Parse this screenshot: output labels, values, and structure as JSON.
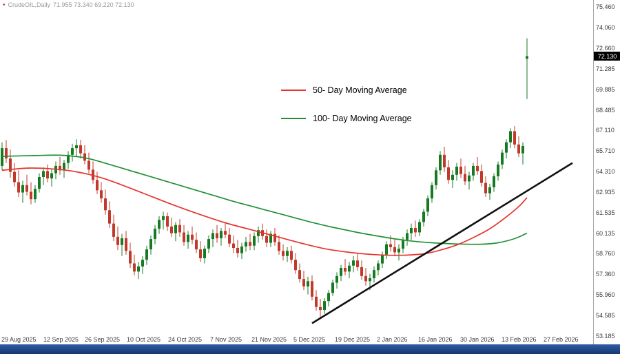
{
  "window": {
    "symbol_label": "CrudeOIL,Daily",
    "ohlc_text": "71.955 73.340 69.220 72.130"
  },
  "chart_data": {
    "type": "candlestick",
    "symbol": "CrudeOIL",
    "timeframe": "Daily",
    "current_bar": {
      "open": 71.955,
      "high": 73.34,
      "low": 69.22,
      "close": 72.13
    },
    "current_price_label": "72.130",
    "y_range": [
      53.185,
      75.46
    ],
    "y_tick_labels": [
      "75.460",
      "74.060",
      "72.660",
      "71.285",
      "69.885",
      "68.485",
      "67.110",
      "65.710",
      "64.310",
      "62.935",
      "61.535",
      "60.135",
      "58.760",
      "57.360",
      "55.960",
      "54.585",
      "53.185"
    ],
    "x_tick_labels": [
      "29 Aug 2025",
      "12 Sep 2025",
      "26 Sep 2025",
      "10 Oct 2025",
      "24 Oct 2025",
      "7 Nov 2025",
      "21 Nov 2025",
      "5 Dec 2025",
      "19 Dec 2025",
      "2 Jan 2026",
      "16 Jan 2026",
      "30 Jan 2026",
      "13 Feb 2026",
      "27 Feb 2026"
    ],
    "legend": [
      {
        "label": "50- Day Moving Average",
        "color": "#e8332e"
      },
      {
        "label": "100- Day Moving Average",
        "color": "#1f9133"
      }
    ],
    "colors": {
      "bull": "#157a21",
      "bear": "#c0392b",
      "ma50": "#e8332e",
      "ma100": "#1f9133",
      "trendline": "#111111"
    },
    "candles": [
      [
        64.7,
        66.3,
        64.4,
        65.9
      ],
      [
        65.9,
        66.45,
        64.9,
        65.2
      ],
      [
        65.2,
        65.8,
        63.9,
        64.3
      ],
      [
        64.3,
        64.9,
        63.3,
        63.6
      ],
      [
        63.6,
        64.4,
        62.6,
        62.9
      ],
      [
        62.9,
        63.7,
        62.2,
        63.4
      ],
      [
        63.4,
        64.1,
        62.7,
        62.95
      ],
      [
        62.95,
        63.6,
        62.1,
        62.45
      ],
      [
        62.45,
        63.4,
        62.2,
        63.15
      ],
      [
        63.15,
        64.2,
        62.9,
        63.95
      ],
      [
        63.95,
        64.6,
        63.4,
        64.35
      ],
      [
        64.35,
        64.8,
        63.6,
        63.85
      ],
      [
        63.85,
        64.5,
        63.3,
        64.2
      ],
      [
        64.2,
        65.0,
        63.8,
        64.7
      ],
      [
        64.7,
        65.3,
        64.1,
        64.4
      ],
      [
        64.4,
        65.1,
        63.9,
        64.9
      ],
      [
        64.9,
        65.7,
        64.5,
        65.45
      ],
      [
        65.45,
        66.2,
        65.0,
        65.9
      ],
      [
        65.9,
        66.5,
        65.3,
        66.1
      ],
      [
        66.1,
        66.45,
        65.2,
        65.55
      ],
      [
        65.55,
        66.1,
        64.8,
        65.05
      ],
      [
        65.05,
        65.6,
        64.2,
        64.45
      ],
      [
        64.45,
        65.0,
        63.5,
        63.75
      ],
      [
        63.75,
        64.3,
        62.8,
        63.05
      ],
      [
        63.05,
        63.6,
        62.2,
        62.5
      ],
      [
        62.5,
        63.1,
        61.4,
        61.7
      ],
      [
        61.7,
        62.3,
        60.5,
        60.8
      ],
      [
        60.8,
        61.4,
        59.6,
        59.9
      ],
      [
        59.9,
        60.6,
        59.0,
        59.35
      ],
      [
        59.35,
        60.1,
        58.6,
        59.8
      ],
      [
        59.8,
        60.3,
        58.7,
        58.95
      ],
      [
        58.95,
        59.5,
        57.8,
        58.1
      ],
      [
        58.1,
        58.7,
        57.3,
        57.55
      ],
      [
        57.55,
        58.2,
        57.05,
        57.9
      ],
      [
        57.9,
        58.6,
        57.4,
        58.35
      ],
      [
        58.35,
        59.3,
        58.0,
        59.05
      ],
      [
        59.05,
        60.0,
        58.7,
        59.75
      ],
      [
        59.75,
        60.7,
        59.4,
        60.45
      ],
      [
        60.45,
        61.3,
        60.1,
        61.05
      ],
      [
        61.05,
        61.6,
        60.4,
        61.3
      ],
      [
        61.3,
        61.55,
        60.3,
        60.6
      ],
      [
        60.6,
        61.2,
        59.9,
        60.15
      ],
      [
        60.15,
        60.9,
        59.6,
        60.7
      ],
      [
        60.7,
        61.1,
        59.9,
        60.2
      ],
      [
        60.2,
        60.7,
        59.3,
        59.55
      ],
      [
        59.55,
        60.3,
        59.1,
        60.05
      ],
      [
        60.05,
        60.6,
        59.4,
        59.7
      ],
      [
        59.7,
        60.2,
        58.8,
        59.05
      ],
      [
        59.05,
        59.6,
        58.2,
        58.45
      ],
      [
        58.45,
        59.3,
        58.1,
        59.1
      ],
      [
        59.1,
        60.0,
        58.8,
        59.75
      ],
      [
        59.75,
        60.4,
        59.2,
        60.15
      ],
      [
        60.15,
        60.7,
        59.5,
        59.8
      ],
      [
        59.8,
        60.5,
        59.3,
        60.3
      ],
      [
        60.3,
        60.9,
        59.8,
        60.05
      ],
      [
        60.05,
        60.5,
        59.2,
        59.45
      ],
      [
        59.45,
        60.0,
        58.8,
        59.15
      ],
      [
        59.15,
        59.7,
        58.5,
        58.8
      ],
      [
        58.8,
        59.5,
        58.4,
        59.25
      ],
      [
        59.25,
        59.9,
        58.9,
        59.55
      ],
      [
        59.55,
        60.1,
        59.0,
        59.3
      ],
      [
        59.3,
        60.2,
        59.0,
        59.95
      ],
      [
        59.95,
        60.6,
        59.5,
        60.35
      ],
      [
        60.35,
        60.8,
        59.7,
        59.95
      ],
      [
        59.95,
        60.4,
        59.2,
        59.5
      ],
      [
        59.5,
        60.3,
        59.2,
        60.1
      ],
      [
        60.1,
        60.5,
        59.3,
        59.55
      ],
      [
        59.55,
        60.0,
        58.7,
        58.95
      ],
      [
        58.95,
        59.4,
        58.3,
        58.6
      ],
      [
        58.6,
        59.2,
        58.2,
        58.95
      ],
      [
        58.95,
        59.3,
        58.1,
        58.35
      ],
      [
        58.35,
        58.8,
        57.4,
        57.65
      ],
      [
        57.65,
        58.1,
        56.8,
        57.05
      ],
      [
        57.05,
        57.6,
        56.3,
        56.55
      ],
      [
        56.55,
        57.2,
        56.0,
        56.9
      ],
      [
        56.9,
        57.3,
        55.6,
        55.85
      ],
      [
        55.85,
        56.3,
        54.9,
        55.15
      ],
      [
        55.15,
        55.7,
        54.4,
        54.95
      ],
      [
        54.95,
        55.75,
        54.7,
        55.55
      ],
      [
        55.55,
        56.3,
        55.2,
        56.1
      ],
      [
        56.1,
        57.0,
        55.9,
        56.8
      ],
      [
        56.8,
        57.5,
        56.4,
        57.25
      ],
      [
        57.25,
        58.0,
        56.9,
        57.8
      ],
      [
        57.8,
        58.4,
        57.3,
        57.55
      ],
      [
        57.55,
        58.2,
        57.1,
        57.95
      ],
      [
        57.95,
        58.6,
        57.5,
        58.3
      ],
      [
        58.3,
        58.8,
        57.6,
        57.85
      ],
      [
        57.85,
        58.3,
        57.0,
        57.25
      ],
      [
        57.25,
        57.8,
        56.6,
        56.9
      ],
      [
        56.9,
        57.4,
        56.3,
        57.1
      ],
      [
        57.1,
        57.9,
        56.8,
        57.65
      ],
      [
        57.65,
        58.3,
        57.3,
        58.1
      ],
      [
        58.1,
        58.9,
        57.8,
        58.7
      ],
      [
        58.7,
        59.6,
        58.4,
        59.4
      ],
      [
        59.4,
        60.0,
        58.9,
        59.2
      ],
      [
        59.2,
        59.8,
        58.6,
        58.85
      ],
      [
        58.85,
        59.4,
        58.3,
        59.1
      ],
      [
        59.1,
        59.9,
        58.8,
        59.7
      ],
      [
        59.7,
        60.4,
        59.3,
        60.15
      ],
      [
        60.15,
        60.8,
        59.7,
        60.5
      ],
      [
        60.5,
        61.0,
        59.9,
        60.2
      ],
      [
        60.2,
        61.1,
        59.95,
        60.9
      ],
      [
        60.9,
        61.8,
        60.6,
        61.6
      ],
      [
        61.6,
        62.7,
        61.3,
        62.5
      ],
      [
        62.5,
        63.6,
        62.2,
        63.4
      ],
      [
        63.4,
        64.6,
        63.1,
        64.4
      ],
      [
        64.4,
        65.7,
        64.1,
        65.45
      ],
      [
        65.45,
        66.0,
        64.3,
        64.6
      ],
      [
        64.6,
        65.1,
        63.5,
        63.75
      ],
      [
        63.75,
        64.4,
        63.2,
        64.1
      ],
      [
        64.1,
        64.9,
        63.7,
        64.65
      ],
      [
        64.65,
        65.2,
        63.9,
        64.15
      ],
      [
        64.15,
        64.7,
        63.4,
        63.65
      ],
      [
        63.65,
        64.3,
        63.1,
        64.05
      ],
      [
        64.05,
        64.9,
        63.7,
        64.7
      ],
      [
        64.7,
        65.3,
        64.1,
        64.35
      ],
      [
        64.35,
        64.8,
        63.3,
        63.55
      ],
      [
        63.55,
        64.0,
        62.6,
        62.85
      ],
      [
        62.85,
        63.5,
        62.4,
        63.25
      ],
      [
        63.25,
        64.2,
        62.95,
        64.0
      ],
      [
        64.0,
        65.0,
        63.7,
        64.8
      ],
      [
        64.8,
        65.8,
        64.5,
        65.6
      ],
      [
        65.6,
        66.5,
        65.2,
        66.3
      ],
      [
        66.3,
        67.25,
        65.9,
        67.05
      ],
      [
        67.05,
        67.4,
        65.9,
        66.15
      ],
      [
        66.15,
        66.7,
        65.3,
        65.55
      ],
      [
        65.55,
        66.3,
        64.8,
        66.05
      ],
      [
        71.955,
        73.34,
        69.22,
        72.13
      ]
    ],
    "ma50_points": [
      [
        0,
        64.4
      ],
      [
        6,
        64.55
      ],
      [
        12,
        64.5
      ],
      [
        18,
        64.3
      ],
      [
        24,
        63.9
      ],
      [
        30,
        63.3
      ],
      [
        36,
        62.65
      ],
      [
        42,
        62.0
      ],
      [
        48,
        61.4
      ],
      [
        54,
        60.85
      ],
      [
        60,
        60.4
      ],
      [
        66,
        59.95
      ],
      [
        72,
        59.5
      ],
      [
        78,
        59.1
      ],
      [
        84,
        58.85
      ],
      [
        90,
        58.7
      ],
      [
        96,
        58.65
      ],
      [
        102,
        58.75
      ],
      [
        106,
        59.0
      ],
      [
        110,
        59.35
      ],
      [
        114,
        59.85
      ],
      [
        118,
        60.45
      ],
      [
        122,
        61.25
      ],
      [
        125,
        61.95
      ],
      [
        127,
        62.55
      ]
    ],
    "ma100_points": [
      [
        0,
        65.35
      ],
      [
        8,
        65.4
      ],
      [
        14,
        65.42
      ],
      [
        20,
        65.25
      ],
      [
        26,
        64.8
      ],
      [
        32,
        64.3
      ],
      [
        38,
        63.8
      ],
      [
        44,
        63.3
      ],
      [
        50,
        62.8
      ],
      [
        56,
        62.3
      ],
      [
        62,
        61.85
      ],
      [
        68,
        61.4
      ],
      [
        74,
        60.95
      ],
      [
        80,
        60.55
      ],
      [
        86,
        60.2
      ],
      [
        92,
        59.9
      ],
      [
        98,
        59.65
      ],
      [
        104,
        59.5
      ],
      [
        110,
        59.42
      ],
      [
        116,
        59.4
      ],
      [
        120,
        59.5
      ],
      [
        124,
        59.78
      ],
      [
        127,
        60.15
      ]
    ],
    "trendline": {
      "from_index": 75,
      "from_price": 54.05,
      "to_index": 138,
      "to_price": 64.9
    }
  }
}
